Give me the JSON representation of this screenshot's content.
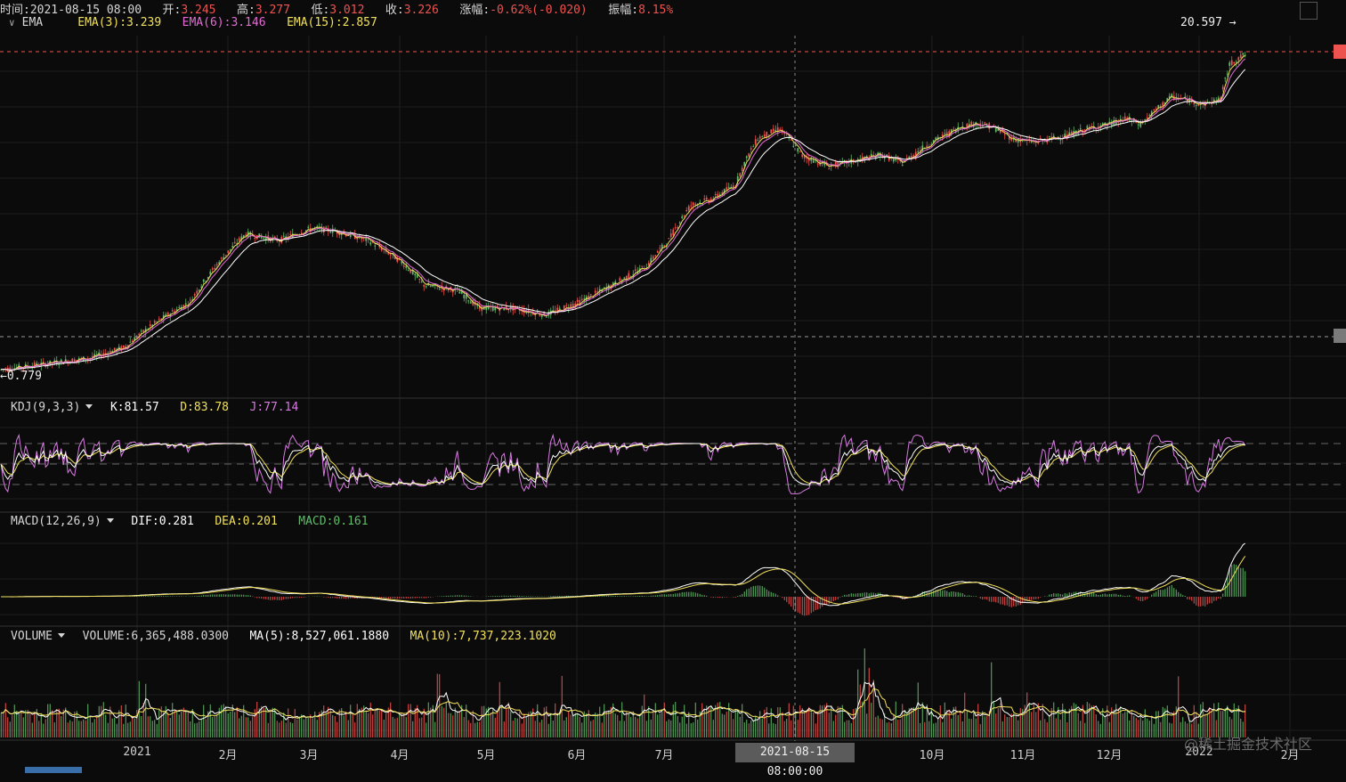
{
  "info_bar": {
    "time_label": "时间:",
    "time": "2021-08-15 08:00",
    "open_label": "开:",
    "open": "3.245",
    "high_label": "高:",
    "high": "3.277",
    "low_label": "低:",
    "low": "3.012",
    "close_label": "收:",
    "close": "3.226",
    "change_label": "涨幅:",
    "change": "-0.62%(-0.020)",
    "amplitude_label": "振幅:",
    "amplitude": "8.15%"
  },
  "main_indicator": {
    "name": "EMA",
    "ema3": "EMA(3):3.239",
    "ema6": "EMA(6):3.146",
    "ema15": "EMA(15):2.857"
  },
  "kdj": {
    "name": "KDJ(9,3,3)",
    "k": "K:81.57",
    "d": "D:83.78",
    "j": "J:77.14"
  },
  "macd": {
    "name": "MACD(12,26,9)",
    "dif": "DIF:0.281",
    "dea": "DEA:0.201",
    "macd": "MACD:0.161"
  },
  "volume": {
    "name": "VOLUME",
    "vol": "VOLUME:6,365,488.0300",
    "ma5": "MA(5):8,527,061.1880",
    "ma10": "MA(10):7,737,223.1020"
  },
  "max_label": "20.597",
  "min_label": "0.779",
  "crosshair_time": "2021-08-15 08:00:00",
  "watermark": "@稀土掘金技术社区",
  "icons": {
    "collapse": "chevron-down-icon",
    "dropdown": "caret-down-icon",
    "expand": "fullscreen-icon",
    "arrow": "arrow-right-icon"
  },
  "colors": {
    "up": "#63b96a",
    "down": "#ef5350",
    "ema3": "#f1e05a",
    "ema6": "#e46ad6",
    "ema15": "#ffffff",
    "k": "#ffffff",
    "d": "#f1e05a",
    "j": "#d77ae1",
    "grid": "#222222"
  },
  "chart_data": {
    "type": "candlestick",
    "x_ticks": [
      "2021",
      "2月",
      "3月",
      "4月",
      "5月",
      "6月",
      "7月",
      "10月",
      "11月",
      "12月",
      "2022",
      "2月"
    ],
    "y_range": [
      0.779,
      20.597
    ],
    "series": [
      {
        "name": "EMA(3)",
        "last": 3.239
      },
      {
        "name": "EMA(6)",
        "last": 3.146
      },
      {
        "name": "EMA(15)",
        "last": 2.857
      },
      {
        "name": "K",
        "last": 81.57
      },
      {
        "name": "D",
        "last": 83.78
      },
      {
        "name": "J",
        "last": 77.14
      },
      {
        "name": "DIF",
        "last": 0.281
      },
      {
        "name": "DEA",
        "last": 0.201
      },
      {
        "name": "MACD",
        "last": 0.161
      },
      {
        "name": "VOLUME",
        "last": 6365488.03
      },
      {
        "name": "MA(5)",
        "last": 8527061.188
      },
      {
        "name": "MA(10)",
        "last": 7737223.102
      }
    ],
    "price_path": [
      [
        0,
        0.8
      ],
      [
        20,
        0.85
      ],
      [
        40,
        0.9
      ],
      [
        55,
        1.0
      ],
      [
        70,
        1.3
      ],
      [
        85,
        1.6
      ],
      [
        95,
        2.2
      ],
      [
        110,
        3.2
      ],
      [
        125,
        3.0
      ],
      [
        140,
        3.4
      ],
      [
        150,
        3.3
      ],
      [
        165,
        3.0
      ],
      [
        180,
        2.4
      ],
      [
        190,
        1.9
      ],
      [
        205,
        1.8
      ],
      [
        215,
        1.5
      ],
      [
        230,
        1.5
      ],
      [
        245,
        1.4
      ],
      [
        260,
        1.6
      ],
      [
        275,
        1.9
      ],
      [
        290,
        2.3
      ],
      [
        300,
        3.0
      ],
      [
        310,
        4.3
      ],
      [
        320,
        4.6
      ],
      [
        330,
        5.3
      ],
      [
        340,
        8.5
      ],
      [
        350,
        9.4
      ],
      [
        360,
        7.1
      ],
      [
        372,
        6.4
      ],
      [
        385,
        6.8
      ],
      [
        395,
        7.2
      ],
      [
        405,
        6.6
      ],
      [
        415,
        7.8
      ],
      [
        425,
        8.9
      ],
      [
        432,
        9.6
      ],
      [
        438,
        9.9
      ],
      [
        445,
        9.6
      ],
      [
        455,
        8.4
      ],
      [
        465,
        8.2
      ],
      [
        480,
        8.8
      ],
      [
        490,
        9.5
      ],
      [
        498,
        9.8
      ],
      [
        506,
        10.4
      ],
      [
        512,
        9.8
      ],
      [
        520,
        11.6
      ],
      [
        526,
        13.0
      ],
      [
        533,
        12.6
      ],
      [
        540,
        12.0
      ],
      [
        548,
        12.7
      ],
      [
        552,
        18.0
      ],
      [
        556,
        19.3
      ],
      [
        560,
        20.2
      ]
    ]
  }
}
